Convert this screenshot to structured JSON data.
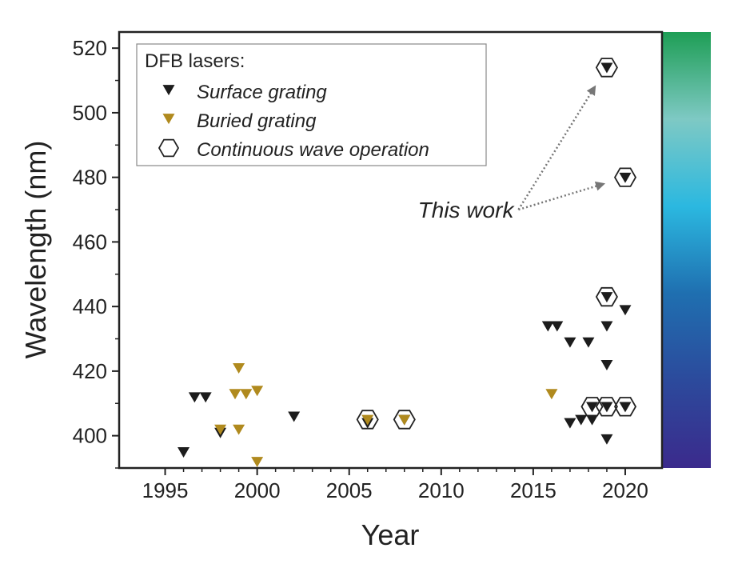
{
  "chart_data": {
    "type": "scatter",
    "xlabel": "Year",
    "ylabel": "Wavelength (nm)",
    "xlim": [
      1992.5,
      2022
    ],
    "ylim": [
      390,
      525
    ],
    "xticks": [
      1995,
      2000,
      2005,
      2010,
      2015,
      2020
    ],
    "yticks": [
      400,
      420,
      440,
      460,
      480,
      500,
      520
    ],
    "grid": false,
    "legend": {
      "title": "DFB lasers:",
      "placement": "top-left",
      "entries": [
        "Surface grating",
        "Buried grating",
        "Continuous wave operation"
      ]
    },
    "series": [
      {
        "name": "Surface grating",
        "color": "#1c1c1c",
        "marker": "down-triangle",
        "points": [
          [
            1996,
            395
          ],
          [
            1996.6,
            412
          ],
          [
            1997.2,
            412
          ],
          [
            1998,
            401
          ],
          [
            2002,
            406
          ],
          [
            2006,
            404
          ],
          [
            2008,
            405
          ],
          [
            2015.8,
            434
          ],
          [
            2016.3,
            434
          ],
          [
            2017,
            429
          ],
          [
            2018,
            429
          ],
          [
            2019,
            434
          ],
          [
            2019,
            422
          ],
          [
            2020,
            439
          ],
          [
            2017,
            404
          ],
          [
            2017.6,
            405
          ],
          [
            2018.2,
            405
          ],
          [
            2019,
            399
          ],
          [
            2019,
            443
          ],
          [
            2018.2,
            409
          ],
          [
            2019,
            409
          ],
          [
            2020,
            409
          ],
          [
            2019,
            514
          ],
          [
            2020,
            480
          ]
        ]
      },
      {
        "name": "Buried grating",
        "color": "#b08a1e",
        "marker": "down-triangle",
        "points": [
          [
            1998,
            402
          ],
          [
            1999,
            421
          ],
          [
            1998.8,
            413
          ],
          [
            1999.4,
            413
          ],
          [
            2000,
            414
          ],
          [
            1999,
            402
          ],
          [
            2000,
            392
          ],
          [
            2006,
            405
          ],
          [
            2008,
            405
          ],
          [
            2016,
            413
          ]
        ]
      },
      {
        "name": "Continuous wave operation",
        "color": "#222222",
        "marker": "hexagon",
        "points": [
          [
            2006,
            405
          ],
          [
            2008,
            405
          ],
          [
            2019,
            443
          ],
          [
            2018.2,
            409
          ],
          [
            2019,
            409
          ],
          [
            2020,
            409
          ],
          [
            2019,
            514
          ],
          [
            2020,
            480
          ]
        ]
      }
    ],
    "annotations": [
      {
        "text": "This work",
        "points_to": [
          [
            2019,
            514
          ],
          [
            2020,
            480
          ]
        ],
        "anchor": [
          2014.2,
          470
        ]
      }
    ],
    "colorbar": {
      "colors": [
        "#3b2a8c",
        "#2c4a9c",
        "#1f6fb0",
        "#2bb8e0",
        "#7ec9c4",
        "#1e9e55"
      ]
    }
  }
}
